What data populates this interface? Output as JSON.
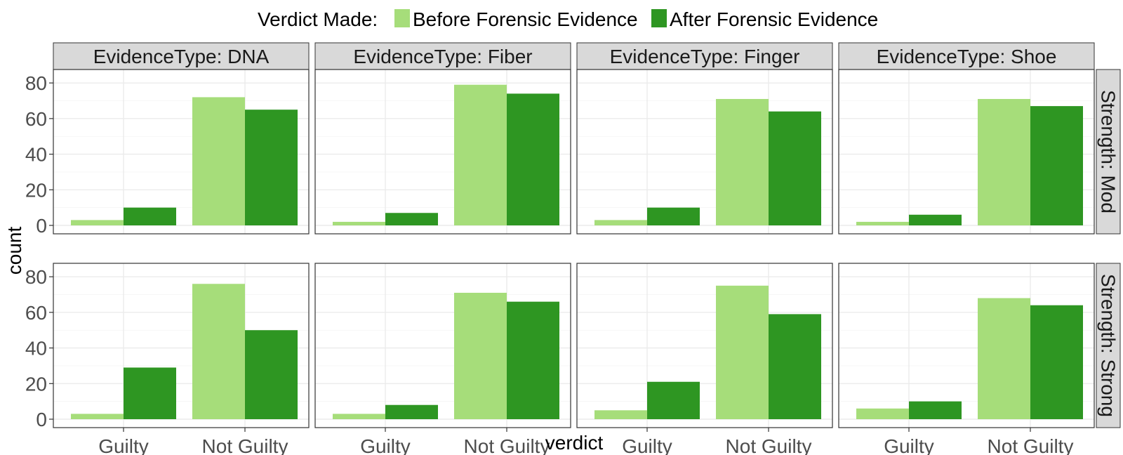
{
  "chart_data": {
    "type": "bar",
    "layout": "facet_grid",
    "legend": {
      "title": "Verdict Made:",
      "position": "top",
      "entries": [
        {
          "label": "Before Forensic Evidence",
          "color": "#a6dd7a"
        },
        {
          "label": "After Forensic Evidence",
          "color": "#2e9622"
        }
      ]
    },
    "xlabel": "verdict",
    "ylabel": "count",
    "categories": [
      "Guilty",
      "Not Guilty"
    ],
    "ylim": [
      0,
      84
    ],
    "yticks": [
      0,
      20,
      40,
      60,
      80
    ],
    "grid": true,
    "columns": [
      "EvidenceType: DNA",
      "EvidenceType: Fiber",
      "EvidenceType: Finger",
      "EvidenceType: Shoe"
    ],
    "rows": [
      "Strength: Mod",
      "Strength: Strong"
    ],
    "panels": [
      {
        "column": "EvidenceType: DNA",
        "row": "Strength: Mod",
        "series": [
          {
            "name": "Before Forensic Evidence",
            "values": [
              3,
              72
            ]
          },
          {
            "name": "After Forensic Evidence",
            "values": [
              10,
              65
            ]
          }
        ]
      },
      {
        "column": "EvidenceType: Fiber",
        "row": "Strength: Mod",
        "series": [
          {
            "name": "Before Forensic Evidence",
            "values": [
              2,
              79
            ]
          },
          {
            "name": "After Forensic Evidence",
            "values": [
              7,
              74
            ]
          }
        ]
      },
      {
        "column": "EvidenceType: Finger",
        "row": "Strength: Mod",
        "series": [
          {
            "name": "Before Forensic Evidence",
            "values": [
              3,
              71
            ]
          },
          {
            "name": "After Forensic Evidence",
            "values": [
              10,
              64
            ]
          }
        ]
      },
      {
        "column": "EvidenceType: Shoe",
        "row": "Strength: Mod",
        "series": [
          {
            "name": "Before Forensic Evidence",
            "values": [
              2,
              71
            ]
          },
          {
            "name": "After Forensic Evidence",
            "values": [
              6,
              67
            ]
          }
        ]
      },
      {
        "column": "EvidenceType: DNA",
        "row": "Strength: Strong",
        "series": [
          {
            "name": "Before Forensic Evidence",
            "values": [
              3,
              76
            ]
          },
          {
            "name": "After Forensic Evidence",
            "values": [
              29,
              50
            ]
          }
        ]
      },
      {
        "column": "EvidenceType: Fiber",
        "row": "Strength: Strong",
        "series": [
          {
            "name": "Before Forensic Evidence",
            "values": [
              3,
              71
            ]
          },
          {
            "name": "After Forensic Evidence",
            "values": [
              8,
              66
            ]
          }
        ]
      },
      {
        "column": "EvidenceType: Finger",
        "row": "Strength: Strong",
        "series": [
          {
            "name": "Before Forensic Evidence",
            "values": [
              5,
              75
            ]
          },
          {
            "name": "After Forensic Evidence",
            "values": [
              21,
              59
            ]
          }
        ]
      },
      {
        "column": "EvidenceType: Shoe",
        "row": "Strength: Strong",
        "series": [
          {
            "name": "Before Forensic Evidence",
            "values": [
              6,
              68
            ]
          },
          {
            "name": "After Forensic Evidence",
            "values": [
              10,
              64
            ]
          }
        ]
      }
    ]
  }
}
